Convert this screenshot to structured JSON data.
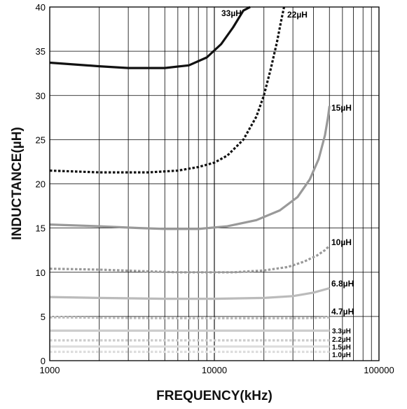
{
  "chart_data": {
    "type": "line",
    "xlabel": "FREQUENCY(kHz)",
    "ylabel": "INDUCTANCE(µH)",
    "xscale": "log",
    "xlim": [
      1000,
      100000
    ],
    "ylim": [
      0,
      40
    ],
    "grid": true,
    "x_ticks": [
      1000,
      10000,
      100000
    ],
    "x_tick_labels": [
      "1000",
      "10000",
      "100000"
    ],
    "y_ticks": [
      0,
      5,
      10,
      15,
      20,
      25,
      30,
      35,
      40
    ],
    "y_tick_labels": [
      "0",
      "5",
      "10",
      "15",
      "20",
      "25",
      "30",
      "35",
      "40"
    ],
    "series": [
      {
        "name": "33µH",
        "color": "#111111",
        "dash": "solid",
        "x": [
          1000,
          2000,
          3000,
          5000,
          7000,
          9000,
          11000,
          13000,
          15000,
          16500
        ],
        "y": [
          33.7,
          33.3,
          33.1,
          33.1,
          33.4,
          34.3,
          35.8,
          37.7,
          39.6,
          40
        ]
      },
      {
        "name": "22µH",
        "color": "#111111",
        "dash": "dotted",
        "x": [
          1000,
          2000,
          4000,
          6000,
          8000,
          10000,
          12000,
          15000,
          18000,
          20000,
          22000,
          24000,
          25500,
          26500
        ],
        "y": [
          21.5,
          21.3,
          21.3,
          21.5,
          21.9,
          22.4,
          23.2,
          25.0,
          27.6,
          30.0,
          33.0,
          36.0,
          38.5,
          40
        ]
      },
      {
        "name": "15µH",
        "color": "#999999",
        "dash": "solid",
        "x": [
          1000,
          2000,
          3500,
          5000,
          8000,
          12000,
          18000,
          25000,
          32000,
          38000,
          43000,
          47000,
          49000,
          50000
        ],
        "y": [
          15.4,
          15.2,
          15.0,
          14.9,
          14.9,
          15.2,
          15.9,
          17.0,
          18.5,
          20.5,
          22.8,
          25.5,
          27.5,
          28.8
        ]
      },
      {
        "name": "10µH",
        "color": "#999999",
        "dash": "dotted",
        "x": [
          1000,
          2000,
          4000,
          6000,
          9000,
          13000,
          20000,
          28000,
          35000,
          42000,
          47000,
          50000
        ],
        "y": [
          10.4,
          10.3,
          10.1,
          10.0,
          10.0,
          10.0,
          10.2,
          10.6,
          11.2,
          11.9,
          12.5,
          13.0
        ]
      },
      {
        "name": "6.8µH",
        "color": "#bbbbbb",
        "dash": "solid",
        "x": [
          1000,
          2000,
          5000,
          10000,
          20000,
          30000,
          40000,
          50000
        ],
        "y": [
          7.2,
          7.1,
          7.0,
          7.0,
          7.1,
          7.3,
          7.7,
          8.2
        ]
      },
      {
        "name": "4.7µH",
        "color": "#bbbbbb",
        "dash": "dotted",
        "x": [
          1000,
          5000,
          10000,
          20000,
          35000,
          50000
        ],
        "y": [
          4.9,
          4.8,
          4.8,
          4.8,
          4.8,
          4.9
        ]
      },
      {
        "name": "3.3µH",
        "color": "#cccccc",
        "dash": "solid",
        "x": [
          1000,
          5000,
          10000,
          20000,
          35000,
          50000
        ],
        "y": [
          3.4,
          3.4,
          3.4,
          3.4,
          3.4,
          3.4
        ]
      },
      {
        "name": "2.2µH",
        "color": "#cccccc",
        "dash": "dotted",
        "x": [
          1000,
          5000,
          10000,
          20000,
          35000,
          50000
        ],
        "y": [
          2.3,
          2.3,
          2.3,
          2.3,
          2.3,
          2.3
        ]
      },
      {
        "name": "1.5µH",
        "color": "#dddddd",
        "dash": "solid",
        "x": [
          1000,
          5000,
          10000,
          20000,
          35000,
          50000
        ],
        "y": [
          1.6,
          1.6,
          1.6,
          1.6,
          1.6,
          1.6
        ]
      },
      {
        "name": "1.0µH",
        "color": "#dddddd",
        "dash": "dotted",
        "x": [
          1000,
          5000,
          10000,
          20000,
          35000,
          50000
        ],
        "y": [
          1.0,
          1.0,
          1.0,
          1.0,
          1.0,
          1.0
        ]
      }
    ]
  }
}
